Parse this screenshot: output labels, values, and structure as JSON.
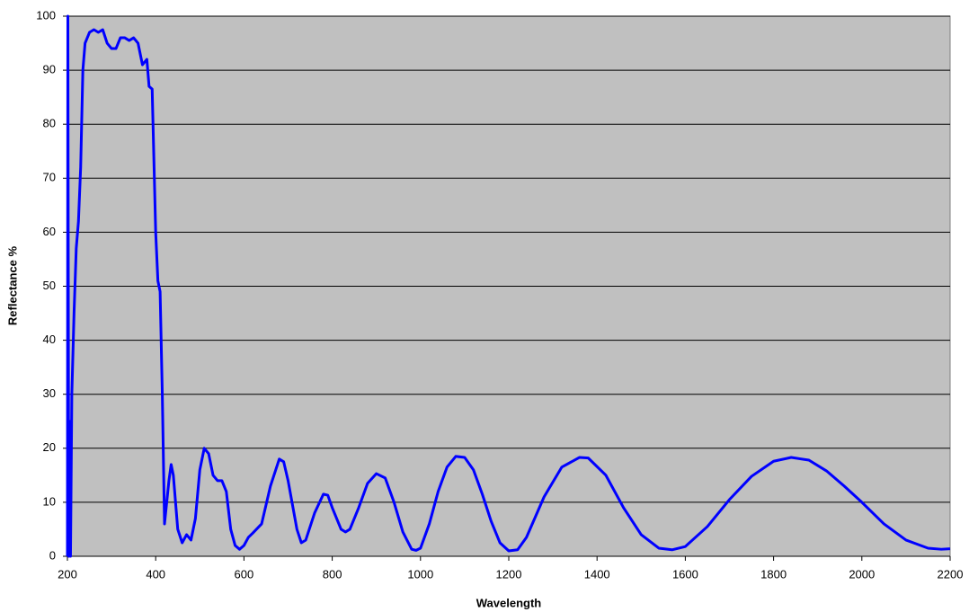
{
  "chart_data": {
    "type": "line",
    "x_label": "Wavelength",
    "y_label": "Reflectance %",
    "xlim": [
      200,
      2200
    ],
    "xticks": [
      200,
      400,
      600,
      800,
      1000,
      1200,
      1400,
      1600,
      1800,
      2000,
      2200
    ],
    "ylim": [
      0,
      100
    ],
    "yticks": [
      0,
      10,
      20,
      30,
      40,
      50,
      60,
      70,
      80,
      90,
      100
    ],
    "grid": true,
    "background": "#c0c0c0",
    "x": [
      200,
      201,
      203,
      205,
      207,
      210,
      215,
      220,
      225,
      230,
      235,
      240,
      250,
      260,
      270,
      280,
      290,
      300,
      310,
      320,
      330,
      340,
      350,
      360,
      370,
      380,
      385,
      392,
      400,
      405,
      410,
      415,
      420,
      430,
      435,
      440,
      450,
      460,
      470,
      480,
      490,
      500,
      510,
      520,
      530,
      540,
      550,
      560,
      570,
      580,
      590,
      600,
      610,
      620,
      640,
      660,
      680,
      690,
      700,
      720,
      730,
      740,
      760,
      780,
      790,
      800,
      820,
      830,
      840,
      860,
      880,
      900,
      920,
      940,
      960,
      980,
      990,
      1000,
      1020,
      1040,
      1060,
      1080,
      1100,
      1120,
      1140,
      1160,
      1180,
      1200,
      1220,
      1240,
      1280,
      1320,
      1360,
      1380,
      1420,
      1460,
      1500,
      1540,
      1570,
      1600,
      1650,
      1700,
      1750,
      1800,
      1840,
      1880,
      1920,
      1960,
      2000,
      2050,
      2100,
      2150,
      2180,
      2200
    ],
    "series": [
      {
        "name": "Reflectance",
        "color": "#0000ff",
        "values": [
          0,
          100,
          0,
          25,
          0,
          30,
          45,
          57,
          62,
          72,
          90,
          95,
          97,
          97.5,
          97,
          97.5,
          95,
          94,
          94,
          96,
          96,
          95.5,
          96,
          95,
          91,
          92,
          87,
          86.5,
          60,
          51,
          49,
          30,
          6,
          14,
          17,
          15,
          5,
          2.5,
          4,
          3,
          7,
          16,
          20,
          19,
          15,
          14,
          14,
          12,
          5,
          2,
          1.3,
          2,
          3.5,
          4.3,
          6,
          13,
          18,
          17.5,
          14,
          5,
          2.5,
          3,
          8,
          11.5,
          11.3,
          9,
          5,
          4.5,
          5,
          9,
          13.5,
          15.3,
          14.5,
          10,
          4.5,
          1.3,
          1.1,
          1.5,
          6,
          12,
          16.5,
          18.5,
          18.3,
          16,
          11.5,
          6.5,
          2.5,
          1,
          1.2,
          3.5,
          11,
          16.5,
          18.3,
          18.2,
          15,
          9,
          4,
          1.5,
          1.2,
          1.8,
          5.5,
          10.5,
          14.8,
          17.6,
          18.3,
          17.8,
          15.8,
          13,
          10,
          6,
          3,
          1.5,
          1.3,
          1.4
        ]
      }
    ]
  }
}
